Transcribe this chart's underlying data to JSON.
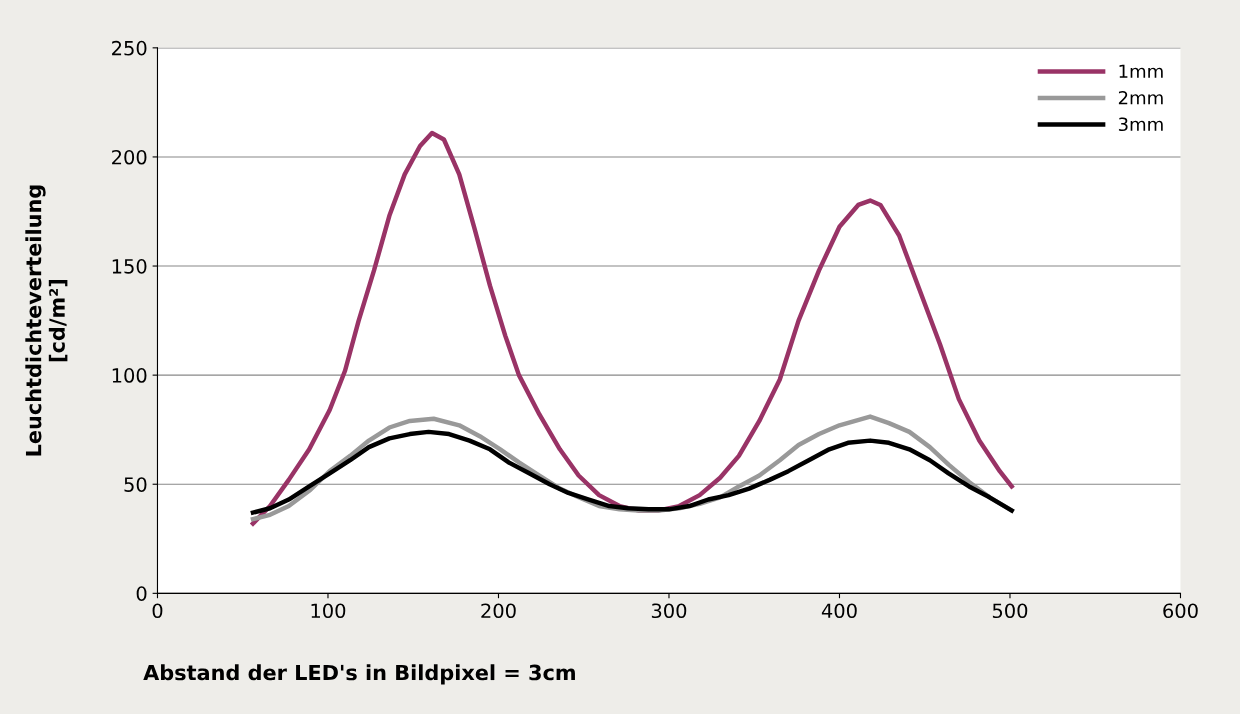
{
  "chart_data": {
    "type": "line",
    "xlabel": "Abstand der LED's in Bildpixel = 3cm",
    "ylabel": "Leuchtdichteverteilung\n[cd/m²]",
    "xlim": [
      0,
      600
    ],
    "xticks": [
      0,
      100,
      200,
      300,
      400,
      500,
      600
    ],
    "ylim": [
      0,
      250
    ],
    "yticks": [
      0,
      50,
      100,
      150,
      200,
      250
    ],
    "grid": "y",
    "legend": "top right",
    "marker": "none",
    "line_style": "solid",
    "series": [
      {
        "name": "1mm",
        "color": "#993366",
        "x": [
          56,
          66,
          77,
          89,
          101,
          110,
          118,
          127,
          136,
          145,
          154,
          161,
          168,
          177,
          186,
          195,
          204,
          212,
          224,
          236,
          247,
          259,
          271,
          282,
          294,
          306,
          318,
          330,
          341,
          353,
          365,
          376,
          388,
          400,
          411,
          418,
          424,
          435,
          447,
          459,
          470,
          482,
          494,
          501
        ],
        "values": [
          32,
          40,
          52,
          66,
          84,
          102,
          125,
          148,
          173,
          192,
          205,
          211,
          208,
          192,
          167,
          141,
          118,
          100,
          82,
          66,
          54,
          45,
          40,
          38,
          38,
          40,
          45,
          53,
          63,
          79,
          98,
          125,
          148,
          168,
          178,
          180,
          178,
          164,
          139,
          114,
          89,
          70,
          56,
          49
        ]
      },
      {
        "name": "2mm",
        "color": "#999999",
        "x": [
          56,
          66,
          77,
          89,
          101,
          113,
          124,
          136,
          148,
          162,
          177,
          189,
          201,
          212,
          224,
          236,
          247,
          259,
          271,
          282,
          294,
          306,
          318,
          330,
          341,
          353,
          365,
          376,
          388,
          400,
          418,
          429,
          441,
          453,
          464,
          476,
          488,
          501
        ],
        "values": [
          34,
          36,
          40,
          47,
          56,
          63,
          70,
          76,
          79,
          80,
          77,
          72,
          66,
          60,
          54,
          48,
          44,
          40,
          38.5,
          38,
          38,
          39,
          41,
          44,
          49,
          54,
          61,
          68,
          73,
          77,
          81,
          78,
          74,
          67,
          59,
          51,
          44,
          38
        ]
      },
      {
        "name": "3mm",
        "color": "#000000",
        "x": [
          56,
          66,
          77,
          89,
          101,
          113,
          124,
          136,
          148,
          159,
          171,
          183,
          195,
          206,
          218,
          230,
          241,
          253,
          265,
          276,
          288,
          300,
          312,
          323,
          335,
          347,
          359,
          370,
          382,
          394,
          405,
          418,
          429,
          441,
          453,
          464,
          476,
          488,
          501
        ],
        "values": [
          37,
          39,
          43,
          49,
          55,
          61,
          67,
          71,
          73,
          74,
          73,
          70,
          66,
          60,
          55,
          50,
          46,
          43,
          40,
          39,
          38.5,
          38.5,
          40,
          43,
          45,
          48,
          52,
          56,
          61,
          66,
          69,
          70,
          69,
          66,
          61,
          55,
          49,
          44,
          38
        ]
      }
    ]
  }
}
